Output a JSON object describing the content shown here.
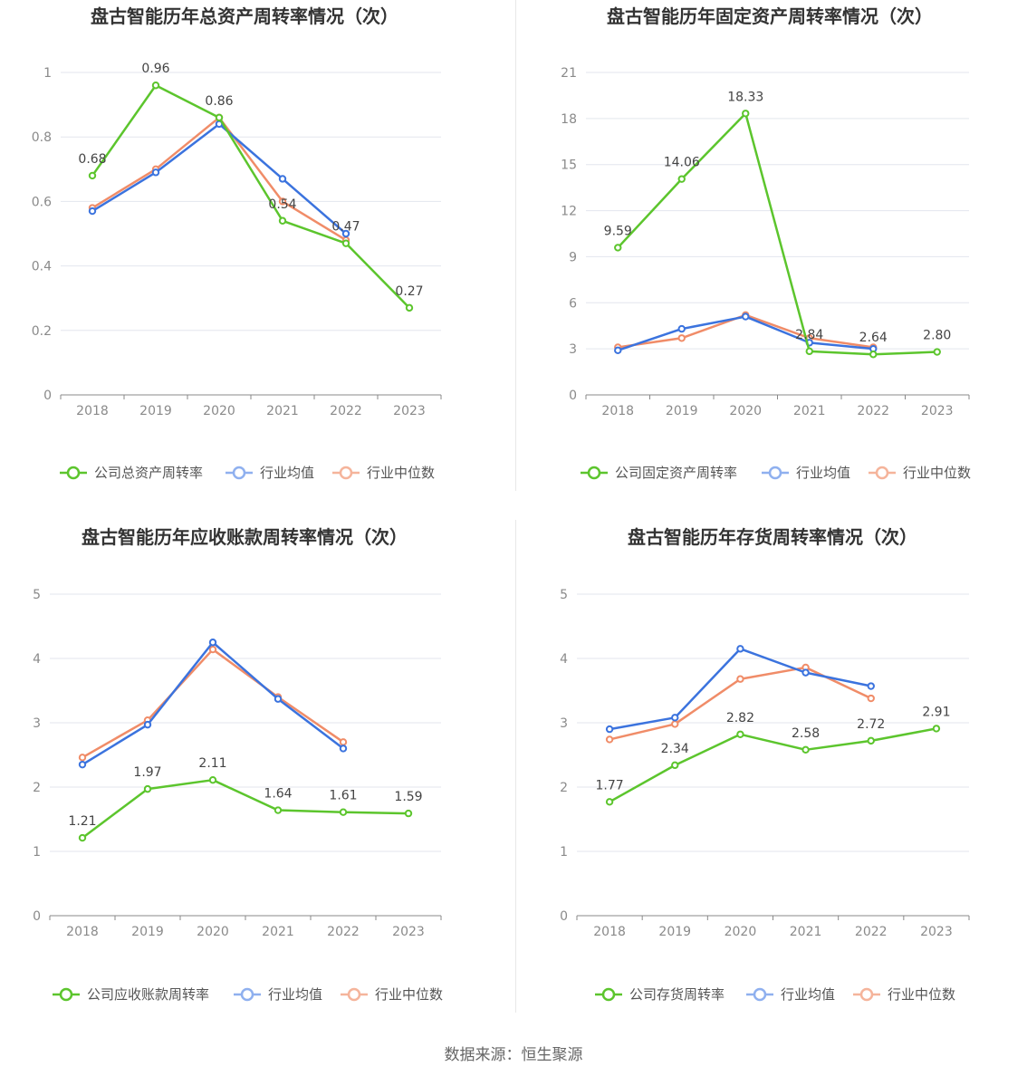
{
  "colors": {
    "company": "#5cc52d",
    "avg": "#3b73de",
    "median": "#f08c68",
    "avg_legend": "#8fb0ef",
    "median_legend": "#f5b49b"
  },
  "source": "数据来源：恒生聚源",
  "chart_data": [
    {
      "type": "line",
      "title": "盘古智能历年总资产周转率情况（次）",
      "categories": [
        "2018",
        "2019",
        "2020",
        "2021",
        "2022",
        "2023"
      ],
      "ylim": [
        0,
        1
      ],
      "yticks": [
        "0",
        "0.2",
        "0.4",
        "0.6",
        "0.8",
        "1"
      ],
      "series": [
        {
          "name": "公司总资产周转率",
          "key": "company",
          "values": [
            0.68,
            0.96,
            0.86,
            0.54,
            0.47,
            0.27
          ],
          "labels": [
            "0.68",
            "0.96",
            "0.86",
            "0.54",
            "0.47",
            "0.27"
          ]
        },
        {
          "name": "行业均值",
          "key": "avg",
          "values": [
            0.57,
            0.69,
            0.84,
            0.67,
            0.5,
            null
          ]
        },
        {
          "name": "行业中位数",
          "key": "median",
          "values": [
            0.58,
            0.7,
            0.86,
            0.6,
            0.48,
            null
          ]
        }
      ]
    },
    {
      "type": "line",
      "title": "盘古智能历年固定资产周转率情况（次）",
      "categories": [
        "2018",
        "2019",
        "2020",
        "2021",
        "2022",
        "2023"
      ],
      "ylim": [
        0,
        21
      ],
      "yticks": [
        "0",
        "3",
        "6",
        "9",
        "12",
        "15",
        "18",
        "21"
      ],
      "series": [
        {
          "name": "公司固定资产周转率",
          "key": "company",
          "values": [
            9.59,
            14.06,
            18.33,
            2.84,
            2.64,
            2.8
          ],
          "labels": [
            "9.59",
            "14.06",
            "18.33",
            "2.84",
            "2.64",
            "2.80"
          ]
        },
        {
          "name": "行业均值",
          "key": "avg",
          "values": [
            2.9,
            4.3,
            5.1,
            3.4,
            3.0,
            null
          ]
        },
        {
          "name": "行业中位数",
          "key": "median",
          "values": [
            3.1,
            3.7,
            5.2,
            3.7,
            3.1,
            null
          ]
        }
      ]
    },
    {
      "type": "line",
      "title": "盘古智能历年应收账款周转率情况（次）",
      "categories": [
        "2018",
        "2019",
        "2020",
        "2021",
        "2022",
        "2023"
      ],
      "ylim": [
        0,
        5
      ],
      "yticks": [
        "0",
        "1",
        "2",
        "3",
        "4",
        "5"
      ],
      "series": [
        {
          "name": "公司应收账款周转率",
          "key": "company",
          "values": [
            1.21,
            1.97,
            2.11,
            1.64,
            1.61,
            1.59
          ],
          "labels": [
            "1.21",
            "1.97",
            "2.11",
            "1.64",
            "1.61",
            "1.59"
          ]
        },
        {
          "name": "行业均值",
          "key": "avg",
          "values": [
            2.35,
            2.97,
            4.25,
            3.37,
            2.6,
            null
          ]
        },
        {
          "name": "行业中位数",
          "key": "median",
          "values": [
            2.46,
            3.04,
            4.14,
            3.4,
            2.7,
            null
          ]
        }
      ]
    },
    {
      "type": "line",
      "title": "盘古智能历年存货周转率情况（次）",
      "categories": [
        "2018",
        "2019",
        "2020",
        "2021",
        "2022",
        "2023"
      ],
      "ylim": [
        0,
        5
      ],
      "yticks": [
        "0",
        "1",
        "2",
        "3",
        "4",
        "5"
      ],
      "series": [
        {
          "name": "公司存货周转率",
          "key": "company",
          "values": [
            1.77,
            2.34,
            2.82,
            2.58,
            2.72,
            2.91
          ],
          "labels": [
            "1.77",
            "2.34",
            "2.82",
            "2.58",
            "2.72",
            "2.91"
          ]
        },
        {
          "name": "行业均值",
          "key": "avg",
          "values": [
            2.9,
            3.08,
            4.15,
            3.78,
            3.57,
            null
          ]
        },
        {
          "name": "行业中位数",
          "key": "median",
          "values": [
            2.74,
            2.98,
            3.68,
            3.86,
            3.38,
            null
          ]
        }
      ]
    }
  ]
}
